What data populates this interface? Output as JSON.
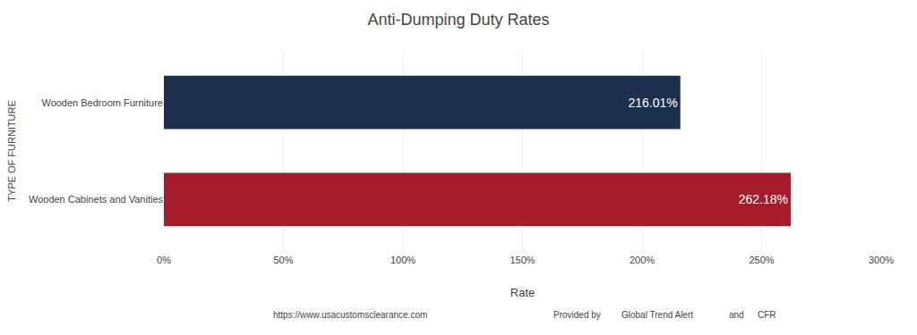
{
  "chart_data": {
    "type": "bar",
    "orientation": "horizontal",
    "title": "Anti-Dumping Duty Rates",
    "xlabel": "Rate",
    "ylabel": "TYPE OF FURNITURE",
    "categories": [
      "Wooden Cabinets and Vanities",
      "Wooden Bedroom Furniture"
    ],
    "values": [
      262.18,
      216.01
    ],
    "value_labels": [
      "262.18%",
      "216.01%"
    ],
    "data_labels": true,
    "colors": [
      "#a61c2b",
      "#1b2f4e"
    ],
    "xlim": [
      0,
      300
    ],
    "xticks": [
      {
        "value": 0,
        "label": "0%"
      },
      {
        "value": 50,
        "label": "50%"
      },
      {
        "value": 100,
        "label": "100%"
      },
      {
        "value": 150,
        "label": "150%"
      },
      {
        "value": 200,
        "label": "200%"
      },
      {
        "value": 250,
        "label": "250%"
      },
      {
        "value": 300,
        "label": "300%"
      }
    ],
    "grid": true,
    "annotations": [
      "https://www.usacustomsclearance.com",
      "Provided by",
      "Global Trend Alert",
      "and",
      "CFR"
    ]
  }
}
